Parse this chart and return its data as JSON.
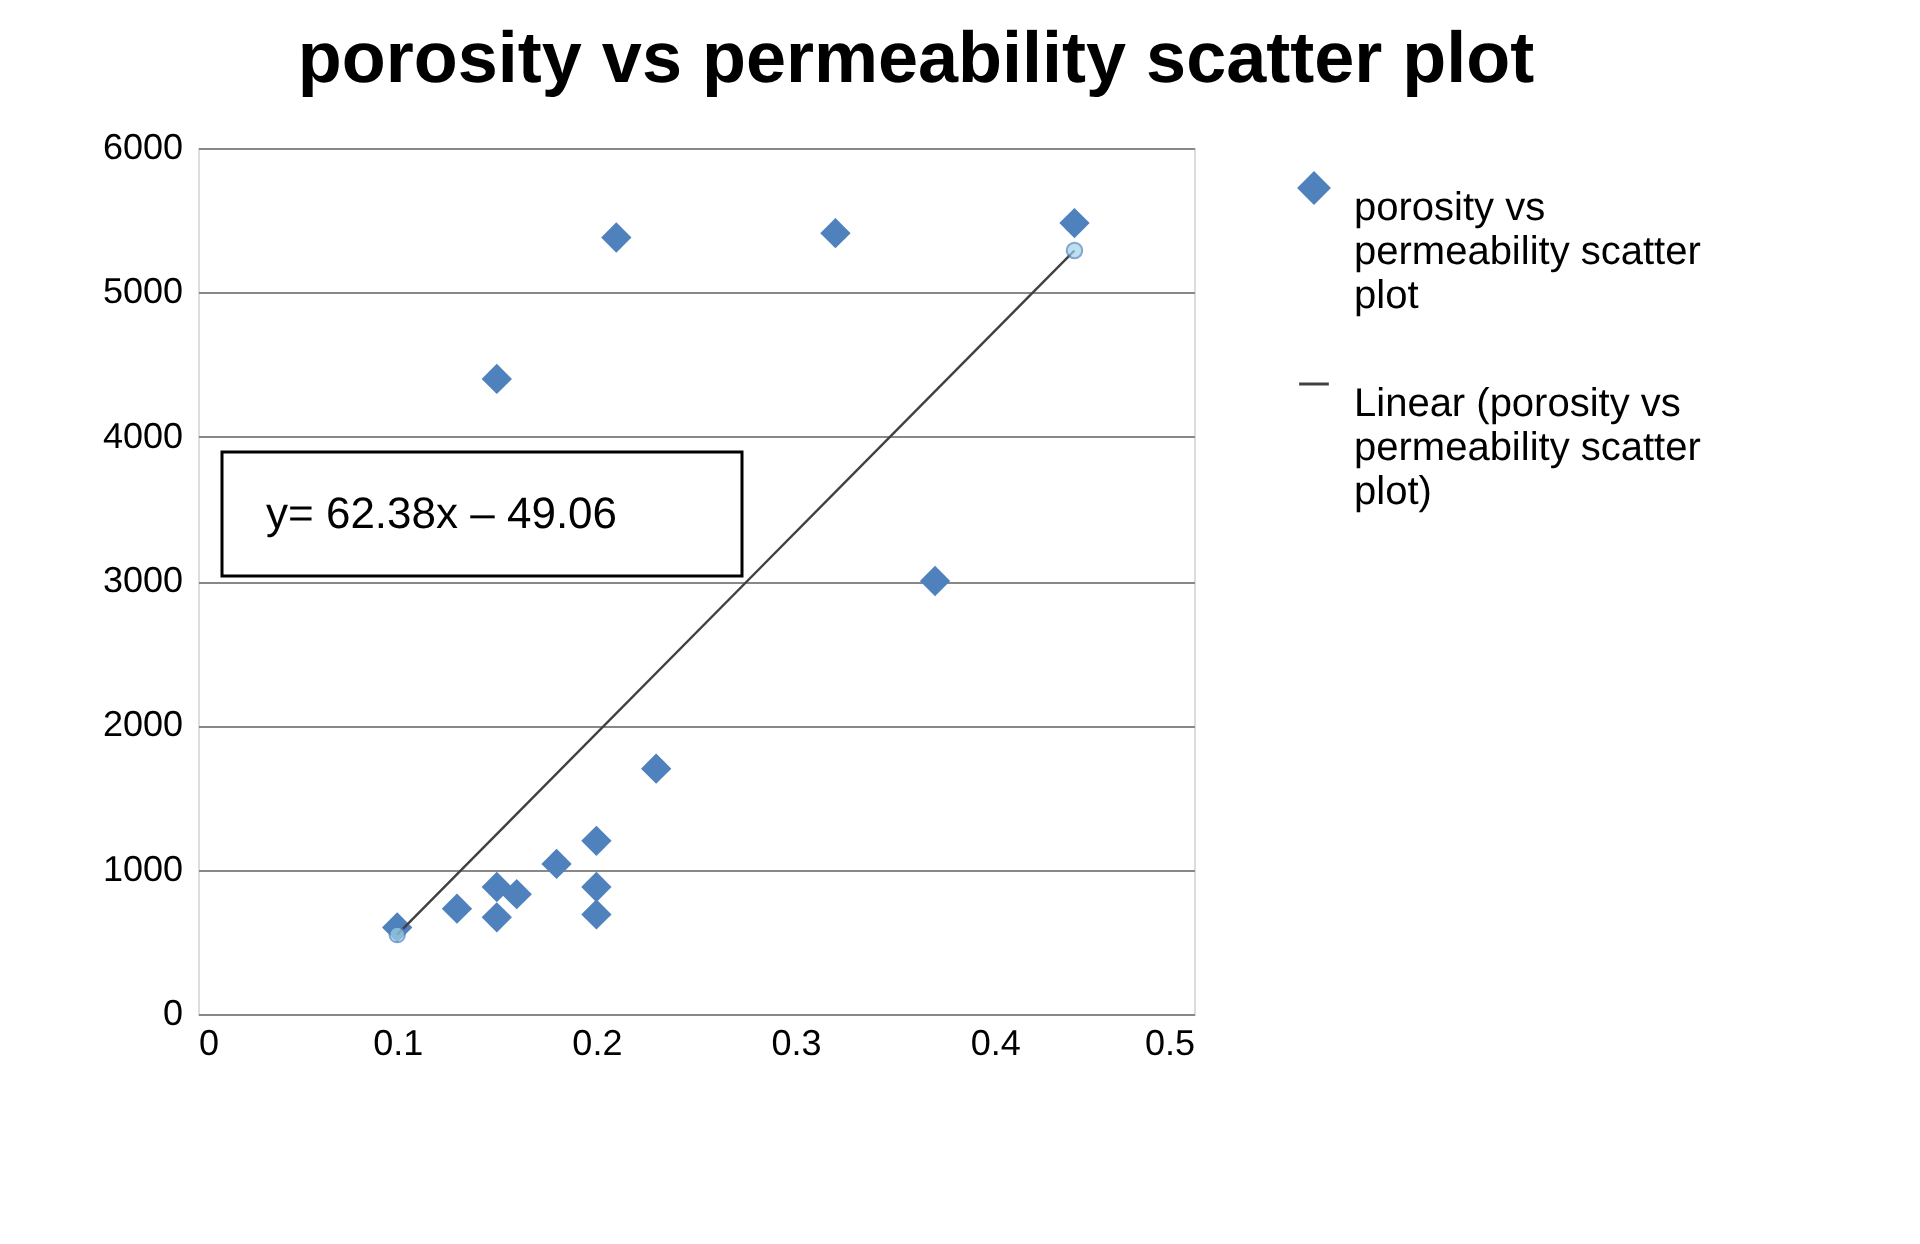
{
  "chart_data": {
    "type": "scatter",
    "title": "porosity vs permeability scatter plot",
    "x": [
      0.1,
      0.13,
      0.15,
      0.15,
      0.16,
      0.18,
      0.2,
      0.2,
      0.2,
      0.23,
      0.15,
      0.21,
      0.32,
      0.37,
      0.44
    ],
    "series": [
      {
        "name": "porosity vs permeability scatter plot",
        "color": "#4f81bd",
        "marker": "diamond",
        "values": [
          600,
          730,
          880,
          670,
          830,
          1040,
          1200,
          880,
          690,
          1700,
          4400,
          5380,
          5410,
          3000,
          5480
        ]
      },
      {
        "name": "Linear (porosity vs permeability scatter plot)",
        "type": "line",
        "color": "#404040",
        "marker": "circle",
        "line_style": "solid",
        "x": [
          0.1,
          0.44
        ],
        "values": [
          550,
          5290
        ]
      }
    ],
    "xlim": [
      0,
      0.5
    ],
    "xticks": [
      0,
      0.1,
      0.2,
      0.3,
      0.4,
      0.5
    ],
    "ylim": [
      0,
      6000
    ],
    "yticks": [
      0,
      1000,
      2000,
      3000,
      4000,
      5000,
      6000
    ],
    "grid": "y",
    "legend": "right",
    "annotations": [
      "y= 62.38x – 49.06"
    ]
  }
}
